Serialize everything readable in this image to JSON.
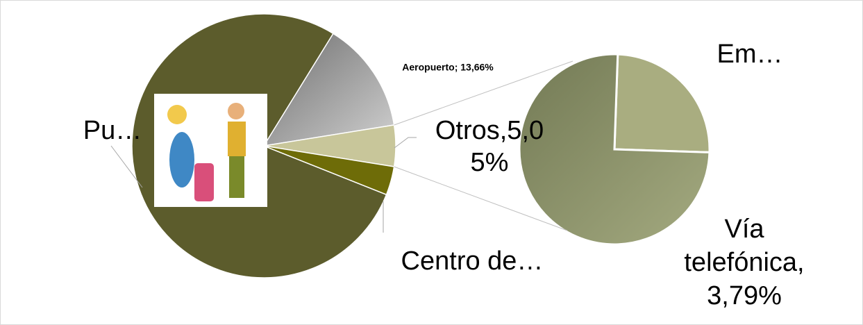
{
  "chart_data": {
    "type": "pie-of-pie",
    "main": {
      "labels": [
        [
          "Pu…"
        ],
        [
          "Aeropuerto; 13,66%"
        ],
        [
          "Otros,5,0",
          "5%"
        ],
        [
          "Centro de…"
        ]
      ],
      "values": [
        77.79,
        13.66,
        5.05,
        3.5
      ],
      "colors": [
        "#5c5c2c",
        "#a0a0a0",
        "#c8c69a",
        "#6e6c08"
      ]
    },
    "secondary": {
      "labels": [
        [
          "Em…"
        ],
        [
          "Vía",
          "telefónica,",
          "3,79%"
        ]
      ],
      "values": [
        1.26,
        3.79
      ],
      "colors": [
        "#a9ad80",
        "#8e9670"
      ]
    }
  }
}
